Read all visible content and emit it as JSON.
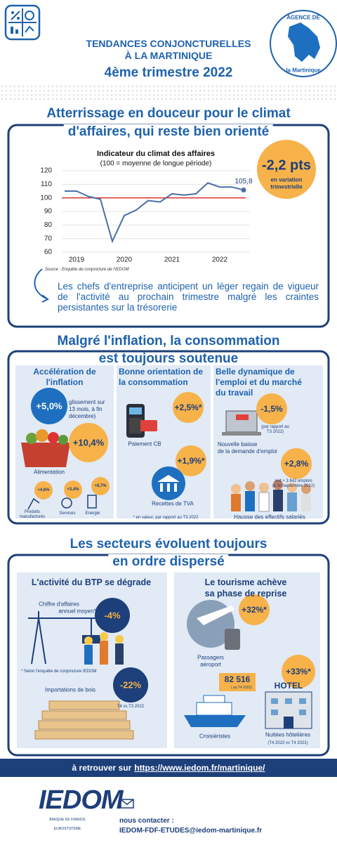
{
  "header": {
    "title_lines": [
      "TENDANCES CONJONCTURELLES",
      "À LA MARTINIQUE"
    ],
    "period": "4ème trimestre 2022",
    "badge_top": "AGENCE DE",
    "badge_bottom": "la Martinique"
  },
  "section1": {
    "heading_lines": [
      "Atterrissage en douceur pour le climat",
      "d'affaires, qui reste bien orienté"
    ],
    "highlight": {
      "value": "-2,2 pts",
      "caption_lines": [
        "en variation",
        "trimestrielle"
      ]
    },
    "text": "Les chefs d'entreprise anticipent un léger regain de vigueur de l'activité au prochain trimestre malgré les craintes persistantes sur la trésorerie"
  },
  "chart_data": {
    "type": "line",
    "title": "Indicateur du climat des affaires",
    "subtitle": "(100 = moyenne de longue période)",
    "source": "Source : Enquête de conjoncture de l'IEDOM",
    "categories": [
      null,
      "2019",
      null,
      null,
      null,
      "2020",
      null,
      null,
      null,
      "2021",
      null,
      null,
      null,
      "2022",
      null,
      null
    ],
    "values": [
      105,
      105,
      101,
      99,
      68,
      87,
      91,
      98,
      97,
      103,
      102,
      103,
      111,
      108,
      108,
      105.8
    ],
    "value_labels": [
      null,
      null,
      null,
      null,
      null,
      null,
      null,
      null,
      null,
      null,
      null,
      null,
      null,
      null,
      null,
      "105,8"
    ],
    "color": "#4a6fa5",
    "reference_line": {
      "value": 100,
      "color": "#d9302c"
    },
    "ylim": [
      60,
      120
    ],
    "yticks": [
      60,
      70,
      80,
      90,
      100,
      110,
      120
    ],
    "grid": true
  },
  "section2": {
    "heading_lines": [
      "Malgré l'inflation, la consommation",
      "est toujours soutenue"
    ],
    "inflation": {
      "title_lines": [
        "Accélération de",
        "l'inflation"
      ],
      "headline": {
        "value": "+5,0%",
        "label_lines": [
          "glissement sur",
          "13 mois, à fin",
          "décembre)"
        ]
      },
      "food": {
        "value": "+10,4%",
        "label": "Alimentation"
      },
      "items": [
        {
          "value": "+4,6%",
          "label_lines": [
            "Produits",
            "manufacturés"
          ]
        },
        {
          "value": "+3,4%",
          "label_lines": [
            "Services"
          ]
        },
        {
          "value": "+8,7%",
          "label_lines": [
            "Energie"
          ]
        }
      ]
    },
    "consumption": {
      "title_lines": [
        "Bonne orientation de",
        "la consommation"
      ],
      "card": {
        "value": "+2,5%*",
        "label": "Paiement CB"
      },
      "vat": {
        "value": "+1,9%*",
        "label": "Recettes de TVA"
      },
      "note": "* en valeur, par rapport au T3 2022"
    },
    "employment": {
      "title_lines": [
        "Belle dynamique de",
        "l'emploi et du marché",
        "du travail"
      ],
      "demand": {
        "value": "-1,5%",
        "note_lines": [
          "(par rapport au",
          "T3 2022)"
        ],
        "label_lines": [
          "Nouvelle baisse",
          "de la demande d'emploi"
        ]
      },
      "salaried": {
        "value": "+2,8%",
        "note_lines": [
          "soit + 3 842 emplois",
          "(à fin septembre 2022)"
        ],
        "label": "Hausse des effectifs salariés"
      }
    }
  },
  "section3": {
    "heading_lines": [
      "Les secteurs évoluent toujours",
      "en ordre dispersé"
    ],
    "construction": {
      "title": "L'activité du BTP se dégrade",
      "turnover": {
        "label_lines": [
          "Chiffre d'affaires",
          "annuel moyen*"
        ],
        "value": "-4%"
      },
      "note": "* Selon l'enquête de conjoncture IEDOM",
      "wood": {
        "label": "Importations de bois",
        "value": "-22%",
        "note": "T4 vs T3 2022"
      }
    },
    "tourism": {
      "title_lines": [
        "Le tourisme achève",
        "sa phase de reprise"
      ],
      "airport": {
        "value": "+32%*",
        "label_lines": [
          "Passagers",
          "aéroport"
        ]
      },
      "cruise": {
        "value": "82 516",
        "note": "( au T4 2022)",
        "label": "Croisiéristes"
      },
      "hotel": {
        "sign": "HOTEL",
        "value": "+33%*",
        "label": "Nuitées hôtelières",
        "note": "(T4 2022 vs T4 2021)"
      }
    }
  },
  "footer": {
    "prefix": "à retrouver sur",
    "url": "https://www.iedom.fr/martinique/",
    "logo": "IEDOM",
    "logo_sub_lines": [
      "BANQUE DE FRANCE",
      "EUROSYSTÈME"
    ],
    "contact_label": "nous contacter :",
    "email": "IEDOM-FDF-ETUDES@iedom-martinique.fr"
  }
}
